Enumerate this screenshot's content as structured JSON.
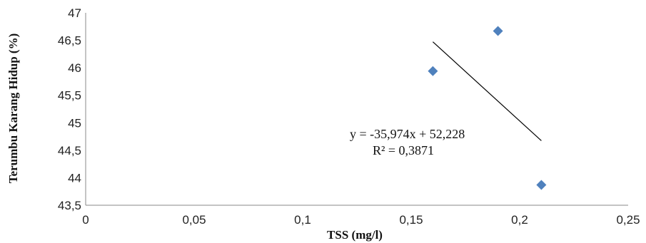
{
  "chart_data": {
    "type": "scatter",
    "xlabel": "TSS (mg/l)",
    "ylabel": "Terumbu Karang Hidup (%)",
    "xlim": [
      0,
      0.25
    ],
    "ylim": [
      43.5,
      47
    ],
    "xticks": [
      "0",
      "0,05",
      "0,1",
      "0,15",
      "0,2",
      "0,25"
    ],
    "yticks": [
      "43,5",
      "44",
      "44,5",
      "45",
      "45,5",
      "46",
      "46,5",
      "47"
    ],
    "grid": false,
    "points": [
      {
        "x": 0.16,
        "y": 45.94
      },
      {
        "x": 0.19,
        "y": 46.67
      },
      {
        "x": 0.21,
        "y": 43.87
      }
    ],
    "trendline": {
      "type": "linear",
      "slope": -35.974,
      "intercept": 52.228,
      "x_range": [
        0.16,
        0.21
      ],
      "equation": "y = -35,974x + 52,228",
      "r2": "R² = 0,3871"
    },
    "marker_color": "#4f81bd",
    "line_color": "#000000"
  }
}
